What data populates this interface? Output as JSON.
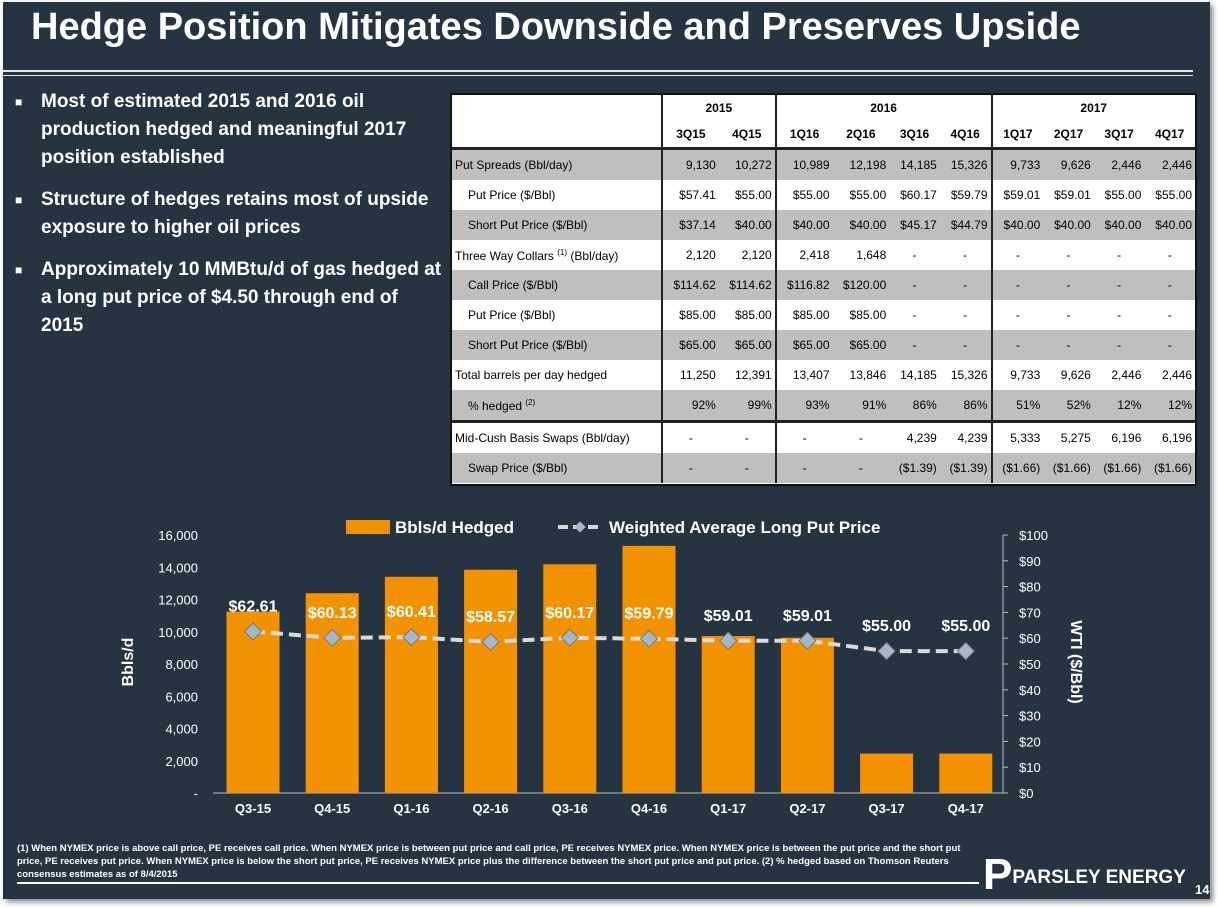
{
  "title": "Hedge Position Mitigates Downside and Preserves Upside",
  "bullets": [
    "Most of estimated 2015 and 2016 oil production hedged and meaningful 2017 position established",
    "Structure of hedges retains most of upside exposure to higher oil prices",
    "Approximately 10 MMBtu/d of gas hedged at a long put price of $4.50 through end of 2015"
  ],
  "table": {
    "years": [
      "2015",
      "2016",
      "2017"
    ],
    "quarters": [
      "3Q15",
      "4Q15",
      "1Q16",
      "2Q16",
      "3Q16",
      "4Q16",
      "1Q17",
      "2Q17",
      "3Q17",
      "4Q17"
    ],
    "rows": [
      {
        "label": "Put Spreads (Bbl/day)",
        "values": [
          "9,130",
          "10,272",
          "10,989",
          "12,198",
          "14,185",
          "15,326",
          "9,733",
          "9,626",
          "2,446",
          "2,446"
        ]
      },
      {
        "label": "Put Price ($/Bbl)",
        "values": [
          "$57.41",
          "$55.00",
          "$55.00",
          "$55.00",
          "$60.17",
          "$59.79",
          "$59.01",
          "$59.01",
          "$55.00",
          "$55.00"
        ]
      },
      {
        "label": "Short Put Price ($/Bbl)",
        "values": [
          "$37.14",
          "$40.00",
          "$40.00",
          "$40.00",
          "$45.17",
          "$44.79",
          "$40.00",
          "$40.00",
          "$40.00",
          "$40.00"
        ]
      },
      {
        "label": "Three Way Collars",
        "sup": "(1)",
        "label2": "(Bbl/day)",
        "values": [
          "2,120",
          "2,120",
          "2,418",
          "1,648",
          "-",
          "-",
          "-",
          "-",
          "-",
          "-"
        ]
      },
      {
        "label": "Call Price ($/Bbl)",
        "values": [
          "$114.62",
          "$114.62",
          "$116.82",
          "$120.00",
          "-",
          "-",
          "-",
          "-",
          "-",
          "-"
        ]
      },
      {
        "label": "Put Price ($/Bbl)",
        "values": [
          "$85.00",
          "$85.00",
          "$85.00",
          "$85.00",
          "-",
          "-",
          "-",
          "-",
          "-",
          "-"
        ]
      },
      {
        "label": "Short Put Price ($/Bbl)",
        "values": [
          "$65.00",
          "$65.00",
          "$65.00",
          "$65.00",
          "-",
          "-",
          "-",
          "-",
          "-",
          "-"
        ]
      },
      {
        "label": "Total barrels per day hedged",
        "values": [
          "11,250",
          "12,391",
          "13,407",
          "13,846",
          "14,185",
          "15,326",
          "9,733",
          "9,626",
          "2,446",
          "2,446"
        ]
      },
      {
        "label": "% hedged",
        "sup": "(2)",
        "values": [
          "92%",
          "99%",
          "93%",
          "91%",
          "86%",
          "86%",
          "51%",
          "52%",
          "12%",
          "12%"
        ]
      },
      {
        "label": "Mid-Cush Basis Swaps (Bbl/day)",
        "values": [
          "-",
          "-",
          "-",
          "-",
          "4,239",
          "4,239",
          "5,333",
          "5,275",
          "6,196",
          "6,196"
        ]
      },
      {
        "label": "Swap Price ($/Bbl)",
        "values": [
          "-",
          "-",
          "-",
          "-",
          "($1.39)",
          "($1.39)",
          "($1.66)",
          "($1.66)",
          "($1.66)",
          "($1.66)"
        ]
      }
    ]
  },
  "chart_data": {
    "type": "bar+line",
    "categories": [
      "Q3-15",
      "Q4-15",
      "Q1-16",
      "Q2-16",
      "Q3-16",
      "Q4-16",
      "Q1-17",
      "Q2-17",
      "Q3-17",
      "Q4-17"
    ],
    "series": [
      {
        "name": "Bbls/d Hedged",
        "type": "bar",
        "axis": "left",
        "color": "#f39200",
        "values": [
          11250,
          12391,
          13407,
          13846,
          14185,
          15326,
          9733,
          9626,
          2446,
          2446
        ]
      },
      {
        "name": "Weighted Average Long Put Price",
        "type": "line",
        "axis": "right",
        "color": "#d9d9d9",
        "marker": "diamond",
        "values": [
          62.61,
          60.13,
          60.41,
          58.57,
          60.17,
          59.79,
          59.01,
          59.01,
          55.0,
          55.0
        ],
        "labels": [
          "$62.61",
          "$60.13",
          "$60.41",
          "$58.57",
          "$60.17",
          "$59.79",
          "$59.01",
          "$59.01",
          "$55.00",
          "$55.00"
        ]
      }
    ],
    "ylabel": "Bbls/d",
    "y2label": "WTI ($/Bbl)",
    "ylim": [
      0,
      16000
    ],
    "y2lim": [
      0,
      100
    ],
    "yticks": [
      "-",
      "2,000",
      "4,000",
      "6,000",
      "8,000",
      "10,000",
      "12,000",
      "14,000",
      "16,000"
    ],
    "y2ticks": [
      "$0",
      "$10",
      "$20",
      "$30",
      "$40",
      "$50",
      "$60",
      "$70",
      "$80",
      "$90",
      "$100"
    ],
    "legend": "top",
    "grid": false
  },
  "footnote": "(1) When NYMEX price is above call price, PE receives call price. When NYMEX price is between put price and call price, PE receives NYMEX price. When NYMEX price is between the put price and the short put price, PE receives put price. When NYMEX price is below the short put price, PE receives NYMEX price plus the difference between the short put price and put price.  (2) % hedged based on Thomson Reuters consensus estimates as of 8/4/2015",
  "logo": "PARSLEY ENERGY",
  "page": "14"
}
